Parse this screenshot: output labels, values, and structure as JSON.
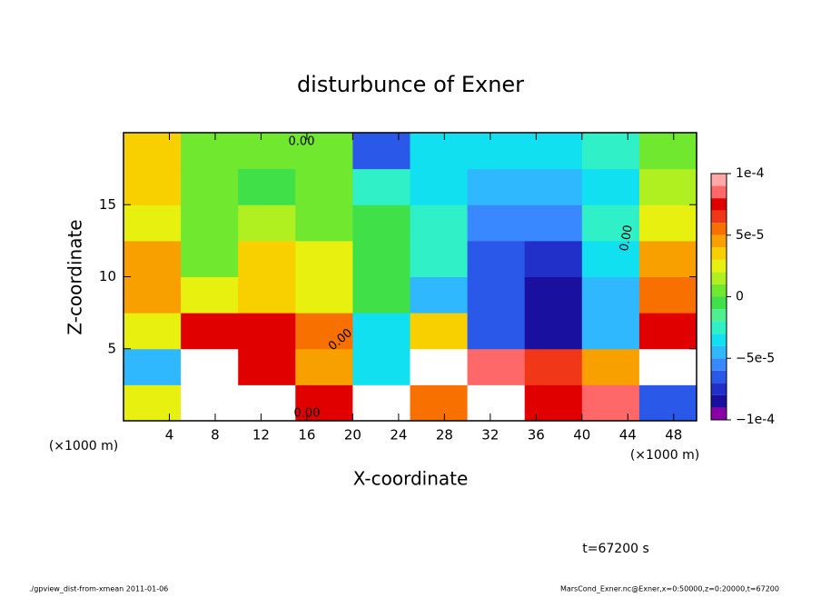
{
  "chart_data": {
    "type": "contour",
    "title": "disturbunce of Exner",
    "x_label": "X-coordinate",
    "y_label": "Z-coordinate",
    "x_unit": "(×1000 m)",
    "y_unit": "(×1000 m)",
    "time_label": "t=67200 s",
    "footer_left": "./gpview_dist-from-xmean  2011-01-06",
    "footer_right": "MarsCond_Exner.nc@Exner,x=0:50000,z=0:20000,t=67200",
    "contour_label": "0.00",
    "xlim": [
      0,
      50
    ],
    "ylim": [
      0,
      20
    ],
    "xticks": [
      4,
      8,
      12,
      16,
      20,
      24,
      28,
      32,
      36,
      40,
      44,
      48
    ],
    "yticks": [
      5,
      10,
      15
    ],
    "x": [
      2.5,
      7.5,
      12.5,
      17.5,
      22.5,
      27.5,
      32.5,
      37.5,
      42.5,
      47.5
    ],
    "y": [
      1.25,
      3.75,
      6.25,
      8.75,
      11.25,
      13.75,
      16.25,
      18.75
    ],
    "z": [
      [
        3e-05,
        0.00011,
        0.00011,
        8e-05,
        0.00011,
        6e-05,
        0.00011,
        8e-05,
        9e-05,
        -6e-05
      ],
      [
        -4e-05,
        0.00011,
        8e-05,
        5e-05,
        -3e-05,
        0.00011,
        9e-05,
        7e-05,
        5e-05,
        0.00011
      ],
      [
        3e-05,
        8e-05,
        8e-05,
        6e-05,
        -3e-05,
        4e-05,
        -6e-05,
        -8e-05,
        -4e-05,
        8e-05
      ],
      [
        5e-05,
        3e-05,
        4e-05,
        3e-05,
        0,
        -4e-05,
        -6e-05,
        -8e-05,
        -4e-05,
        6e-05
      ],
      [
        5e-05,
        1e-05,
        4e-05,
        3e-05,
        0,
        -2e-05,
        -6e-05,
        -7e-05,
        -3e-05,
        5e-05
      ],
      [
        3e-05,
        1e-05,
        2e-05,
        1e-05,
        0,
        -2e-05,
        -5e-05,
        -5e-05,
        -2e-05,
        3e-05
      ],
      [
        4e-05,
        1e-05,
        0,
        1e-05,
        -2e-05,
        -3e-05,
        -4e-05,
        -4e-05,
        -3e-05,
        2e-05
      ],
      [
        4e-05,
        1e-05,
        1e-05,
        1e-05,
        -6e-05,
        -3e-05,
        -3e-05,
        -3e-05,
        -2e-05,
        1e-05
      ]
    ],
    "colorbar": {
      "levels": [
        -0.0001,
        -9e-05,
        -8e-05,
        -7e-05,
        -6e-05,
        -5e-05,
        -4e-05,
        -3e-05,
        -2e-05,
        -1e-05,
        0,
        1e-05,
        2e-05,
        3e-05,
        4e-05,
        5e-05,
        6e-05,
        7e-05,
        8e-05,
        9e-05,
        0.0001
      ],
      "colors": [
        "#8a00a8",
        "#1a10a0",
        "#2030c8",
        "#2a58e8",
        "#3a88ff",
        "#30b8ff",
        "#10e0f0",
        "#30f0c8",
        "#50f090",
        "#40e048",
        "#70e830",
        "#b0f020",
        "#e8f010",
        "#f8d000",
        "#f8a000",
        "#f87000",
        "#f03818",
        "#e00000",
        "#ff6868",
        "#ffa8a8"
      ],
      "over_color": "#ffffff",
      "under_color": "#ffffff",
      "ticks": [
        {
          "value": -0.0001,
          "label": "−1e-4"
        },
        {
          "value": -5e-05,
          "label": "−5e-5"
        },
        0,
        {
          "value": 5e-05,
          "label": "5e-5"
        },
        {
          "value": 0.0001,
          "label": "1e-4"
        }
      ]
    }
  }
}
